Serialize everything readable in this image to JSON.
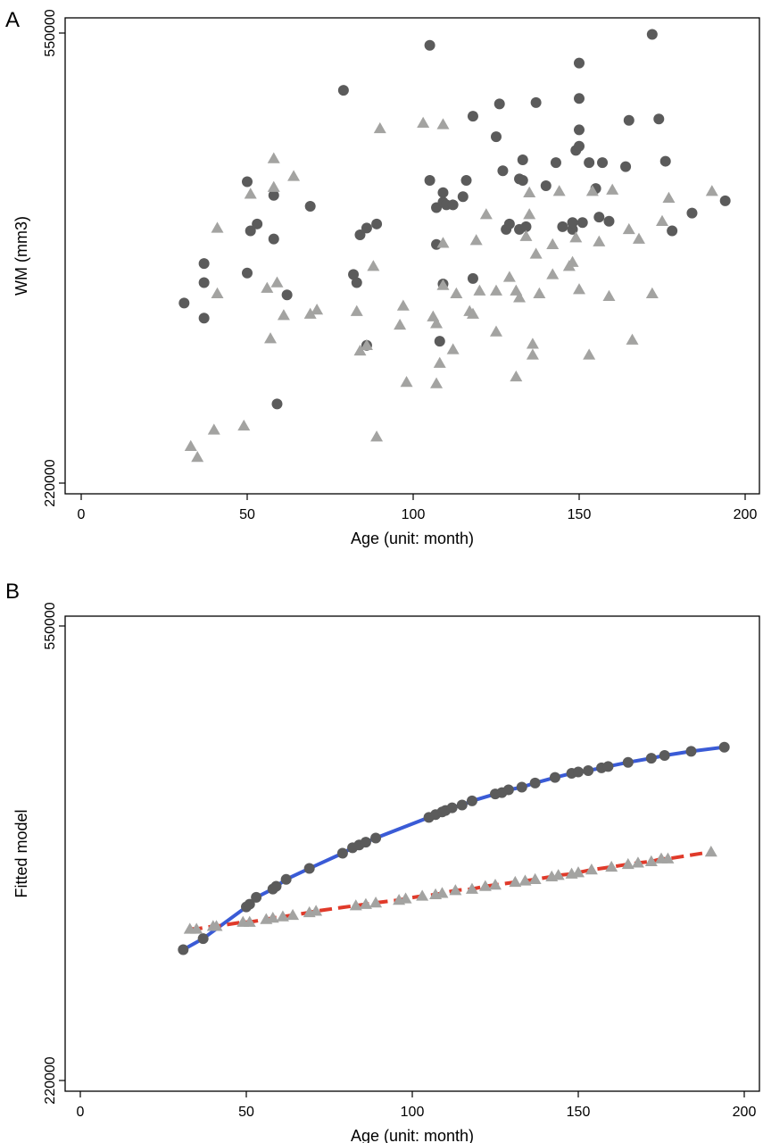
{
  "colors": {
    "circle": "#5b5b5b",
    "triangle": "#a3a3a1",
    "line_circle": "#3a5bd6",
    "line_triangle": "#e03a2a"
  },
  "chart_data": [
    {
      "type": "scatter",
      "panel_label": "A",
      "xlabel": "Age (unit: month)",
      "ylabel": "WM (mm3)",
      "xlim": [
        0,
        200
      ],
      "ylim": [
        220000,
        550000
      ],
      "x_ticks": [
        {
          "value": 0,
          "label": "0"
        },
        {
          "value": 50,
          "label": "50"
        },
        {
          "value": 100,
          "label": "100"
        },
        {
          "value": 150,
          "label": "150"
        },
        {
          "value": 200,
          "label": "200"
        }
      ],
      "y_ticks": [
        {
          "value": 220000,
          "label": "220000"
        },
        {
          "value": 550000,
          "label": "550000"
        }
      ],
      "grid": false,
      "series": [
        {
          "marker": "circle",
          "points": [
            [
              31,
              352000
            ],
            [
              37,
              381000
            ],
            [
              37,
              367000
            ],
            [
              37,
              341000
            ],
            [
              50,
              441000
            ],
            [
              50,
              374000
            ],
            [
              51,
              405000
            ],
            [
              53,
              410000
            ],
            [
              58,
              399000
            ],
            [
              58,
              431000
            ],
            [
              59,
              278000
            ],
            [
              62,
              358000
            ],
            [
              69,
              423000
            ],
            [
              79,
              508000
            ],
            [
              82,
              373000
            ],
            [
              83,
              367000
            ],
            [
              84,
              402000
            ],
            [
              86,
              407000
            ],
            [
              86,
              321000
            ],
            [
              89,
              410000
            ],
            [
              105,
              541000
            ],
            [
              105,
              442000
            ],
            [
              107,
              422000
            ],
            [
              107,
              395000
            ],
            [
              108,
              324000
            ],
            [
              109,
              433000
            ],
            [
              109,
              366000
            ],
            [
              109,
              426000
            ],
            [
              110,
              424000
            ],
            [
              112,
              424000
            ],
            [
              115,
              430000
            ],
            [
              116,
              442000
            ],
            [
              118,
              370000
            ],
            [
              118,
              489000
            ],
            [
              125,
              474000
            ],
            [
              126,
              498000
            ],
            [
              127,
              449000
            ],
            [
              128,
              406000
            ],
            [
              129,
              410000
            ],
            [
              132,
              406000
            ],
            [
              132,
              443000
            ],
            [
              133,
              442000
            ],
            [
              133,
              457000
            ],
            [
              134,
              408000
            ],
            [
              137,
              499000
            ],
            [
              140,
              438000
            ],
            [
              143,
              455000
            ],
            [
              145,
              408000
            ],
            [
              148,
              406000
            ],
            [
              148,
              411000
            ],
            [
              149,
              464000
            ],
            [
              150,
              528000
            ],
            [
              150,
              467000
            ],
            [
              150,
              502000
            ],
            [
              150,
              479000
            ],
            [
              151,
              411000
            ],
            [
              153,
              455000
            ],
            [
              155,
              436000
            ],
            [
              156,
              415000
            ],
            [
              157,
              455000
            ],
            [
              159,
              412000
            ],
            [
              164,
              452000
            ],
            [
              165,
              486000
            ],
            [
              174,
              487000
            ],
            [
              176,
              456000
            ],
            [
              178,
              405000
            ],
            [
              172,
              549000
            ],
            [
              184,
              418000
            ],
            [
              194,
              427000
            ]
          ]
        },
        {
          "marker": "triangle",
          "points": [
            [
              33,
              247000
            ],
            [
              35,
              239000
            ],
            [
              40,
              259000
            ],
            [
              49,
              262000
            ],
            [
              41,
              407000
            ],
            [
              41,
              359000
            ],
            [
              51,
              432000
            ],
            [
              56,
              363000
            ],
            [
              57,
              326000
            ],
            [
              58,
              458000
            ],
            [
              58,
              437000
            ],
            [
              59,
              367000
            ],
            [
              61,
              343000
            ],
            [
              64,
              445000
            ],
            [
              69,
              344000
            ],
            [
              71,
              347000
            ],
            [
              83,
              346000
            ],
            [
              84,
              317000
            ],
            [
              86,
              321000
            ],
            [
              88,
              379000
            ],
            [
              89,
              254000
            ],
            [
              90,
              480000
            ],
            [
              96,
              336000
            ],
            [
              97,
              350000
            ],
            [
              98,
              294000
            ],
            [
              103,
              484000
            ],
            [
              106,
              342000
            ],
            [
              107,
              337000
            ],
            [
              107,
              293000
            ],
            [
              108,
              308000
            ],
            [
              109,
              365000
            ],
            [
              109,
              396000
            ],
            [
              109,
              483000
            ],
            [
              112,
              318000
            ],
            [
              113,
              359000
            ],
            [
              117,
              346000
            ],
            [
              118,
              344000
            ],
            [
              119,
              398000
            ],
            [
              120,
              361000
            ],
            [
              122,
              417000
            ],
            [
              125,
              331000
            ],
            [
              125,
              361000
            ],
            [
              129,
              371000
            ],
            [
              131,
              361000
            ],
            [
              131,
              298000
            ],
            [
              132,
              356000
            ],
            [
              134,
              401000
            ],
            [
              135,
              433000
            ],
            [
              135,
              417000
            ],
            [
              136,
              322000
            ],
            [
              136,
              314000
            ],
            [
              137,
              388000
            ],
            [
              138,
              359000
            ],
            [
              142,
              395000
            ],
            [
              142,
              373000
            ],
            [
              144,
              434000
            ],
            [
              147,
              379000
            ],
            [
              148,
              382000
            ],
            [
              149,
              400000
            ],
            [
              150,
              362000
            ],
            [
              153,
              314000
            ],
            [
              154,
              434000
            ],
            [
              156,
              397000
            ],
            [
              159,
              357000
            ],
            [
              160,
              435000
            ],
            [
              165,
              406000
            ],
            [
              166,
              325000
            ],
            [
              168,
              399000
            ],
            [
              172,
              359000
            ],
            [
              175,
              412000
            ],
            [
              177,
              429000
            ],
            [
              190,
              434000
            ]
          ]
        }
      ]
    },
    {
      "type": "line",
      "panel_label": "B",
      "xlabel": "Age (unit: month)",
      "ylabel": "Fitted model",
      "xlim": [
        0,
        200
      ],
      "ylim": [
        220000,
        550000
      ],
      "x_ticks": [
        {
          "value": 0,
          "label": "0"
        },
        {
          "value": 50,
          "label": "50"
        },
        {
          "value": 100,
          "label": "100"
        },
        {
          "value": 150,
          "label": "150"
        },
        {
          "value": 200,
          "label": "200"
        }
      ],
      "y_ticks": [
        {
          "value": 220000,
          "label": "220000"
        },
        {
          "value": 550000,
          "label": "550000"
        }
      ],
      "grid": false,
      "series": [
        {
          "marker": "circle",
          "line": "solid",
          "x": [
            31,
            37,
            50,
            51,
            53,
            58,
            59,
            62,
            69,
            79,
            82,
            84,
            86,
            89,
            105,
            107,
            109,
            110,
            112,
            115,
            118,
            125,
            127,
            129,
            133,
            137,
            143,
            148,
            150,
            153,
            157,
            159,
            165,
            172,
            176,
            184,
            194
          ],
          "y": [
            315000,
            323000,
            346000,
            348000,
            353000,
            359000,
            361000,
            366000,
            374000,
            385000,
            389000,
            391000,
            393000,
            396000,
            411000,
            413000,
            415000,
            416000,
            418000,
            420000,
            423000,
            428000,
            429000,
            431000,
            433000,
            436000,
            440000,
            443000,
            444000,
            445000,
            447000,
            448000,
            451000,
            454000,
            456000,
            459000,
            462000
          ]
        },
        {
          "marker": "triangle",
          "line": "dashed",
          "x": [
            33,
            35,
            40,
            41,
            49,
            51,
            56,
            58,
            61,
            64,
            69,
            71,
            83,
            86,
            89,
            96,
            98,
            103,
            107,
            109,
            113,
            118,
            122,
            125,
            131,
            134,
            137,
            142,
            144,
            148,
            150,
            154,
            160,
            165,
            168,
            172,
            175,
            177,
            190
          ],
          "y": [
            330000,
            330000,
            332000,
            332000,
            335000,
            335000,
            337000,
            338000,
            339000,
            340000,
            342000,
            343000,
            347000,
            348000,
            349000,
            351000,
            352000,
            354000,
            355000,
            356000,
            358000,
            359000,
            361000,
            362000,
            364000,
            365000,
            366000,
            368000,
            369000,
            370000,
            371000,
            373000,
            375000,
            377000,
            378000,
            379000,
            381000,
            381000,
            386000
          ]
        }
      ]
    }
  ]
}
